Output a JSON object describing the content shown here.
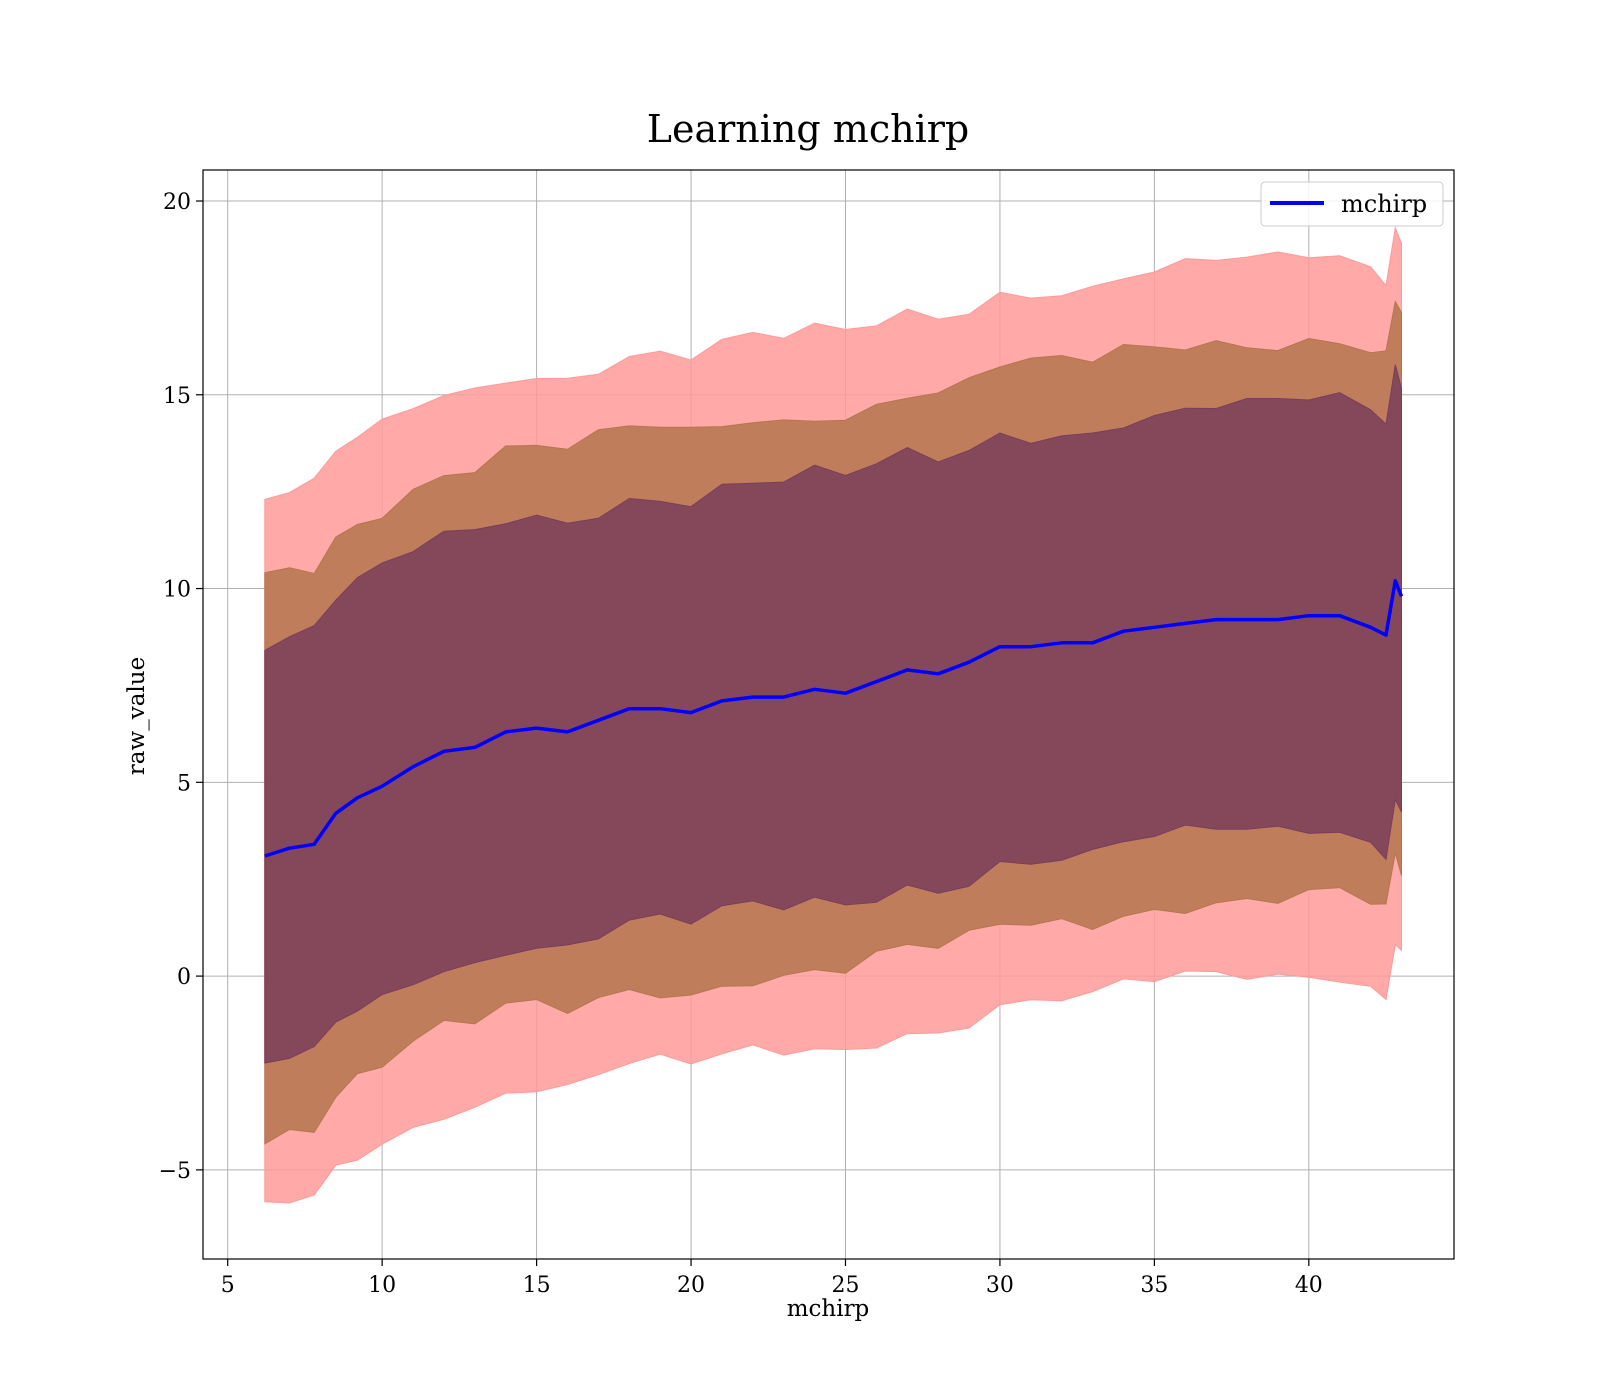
{
  "chart_data": {
    "type": "line",
    "title": "Learning mchirp",
    "xlabel": "mchirp",
    "ylabel": "raw_value",
    "xlim": [
      4.2,
      44.7
    ],
    "ylim": [
      -7.3,
      20.8
    ],
    "xticks": [
      5,
      10,
      15,
      20,
      25,
      30,
      35,
      40
    ],
    "yticks": [
      -5,
      0,
      5,
      10,
      15,
      20
    ],
    "ytick_labels": [
      "−5",
      "0",
      "5",
      "10",
      "15",
      "20"
    ],
    "grid": true,
    "legend_position": "top-right",
    "colors": {
      "line": "#0000ff",
      "band_1sigma": "#7a3e5a",
      "band_2sigma": "#b5764f",
      "band_3sigma": "#ff9a9a"
    },
    "series": [
      {
        "name": "mchirp",
        "x": [
          6.2,
          7.0,
          7.8,
          8.5,
          9.2,
          10.0,
          11.0,
          12.0,
          13.0,
          14.0,
          15.0,
          16.0,
          17.0,
          18.0,
          19.0,
          20.0,
          21.0,
          22.0,
          23.0,
          24.0,
          25.0,
          26.0,
          27.0,
          28.0,
          29.0,
          30.0,
          31.0,
          32.0,
          33.0,
          34.0,
          35.0,
          36.0,
          37.0,
          38.0,
          39.0,
          40.0,
          41.0,
          42.0,
          42.5,
          42.8,
          43.0
        ],
        "y": [
          3.1,
          3.3,
          3.4,
          4.2,
          4.6,
          4.9,
          5.4,
          5.8,
          5.9,
          6.3,
          6.4,
          6.3,
          6.6,
          6.9,
          6.9,
          6.8,
          7.1,
          7.2,
          7.2,
          7.4,
          7.3,
          7.6,
          7.9,
          7.8,
          8.1,
          8.5,
          8.5,
          8.6,
          8.6,
          8.9,
          9.0,
          9.1,
          9.2,
          9.2,
          9.2,
          9.3,
          9.3,
          9.0,
          8.8,
          10.2,
          9.8
        ]
      }
    ],
    "bands": [
      {
        "sigma": 3,
        "half_width": 9.2
      },
      {
        "sigma": 2,
        "half_width": 7.2
      },
      {
        "sigma": 1,
        "half_width": 5.5
      }
    ]
  }
}
